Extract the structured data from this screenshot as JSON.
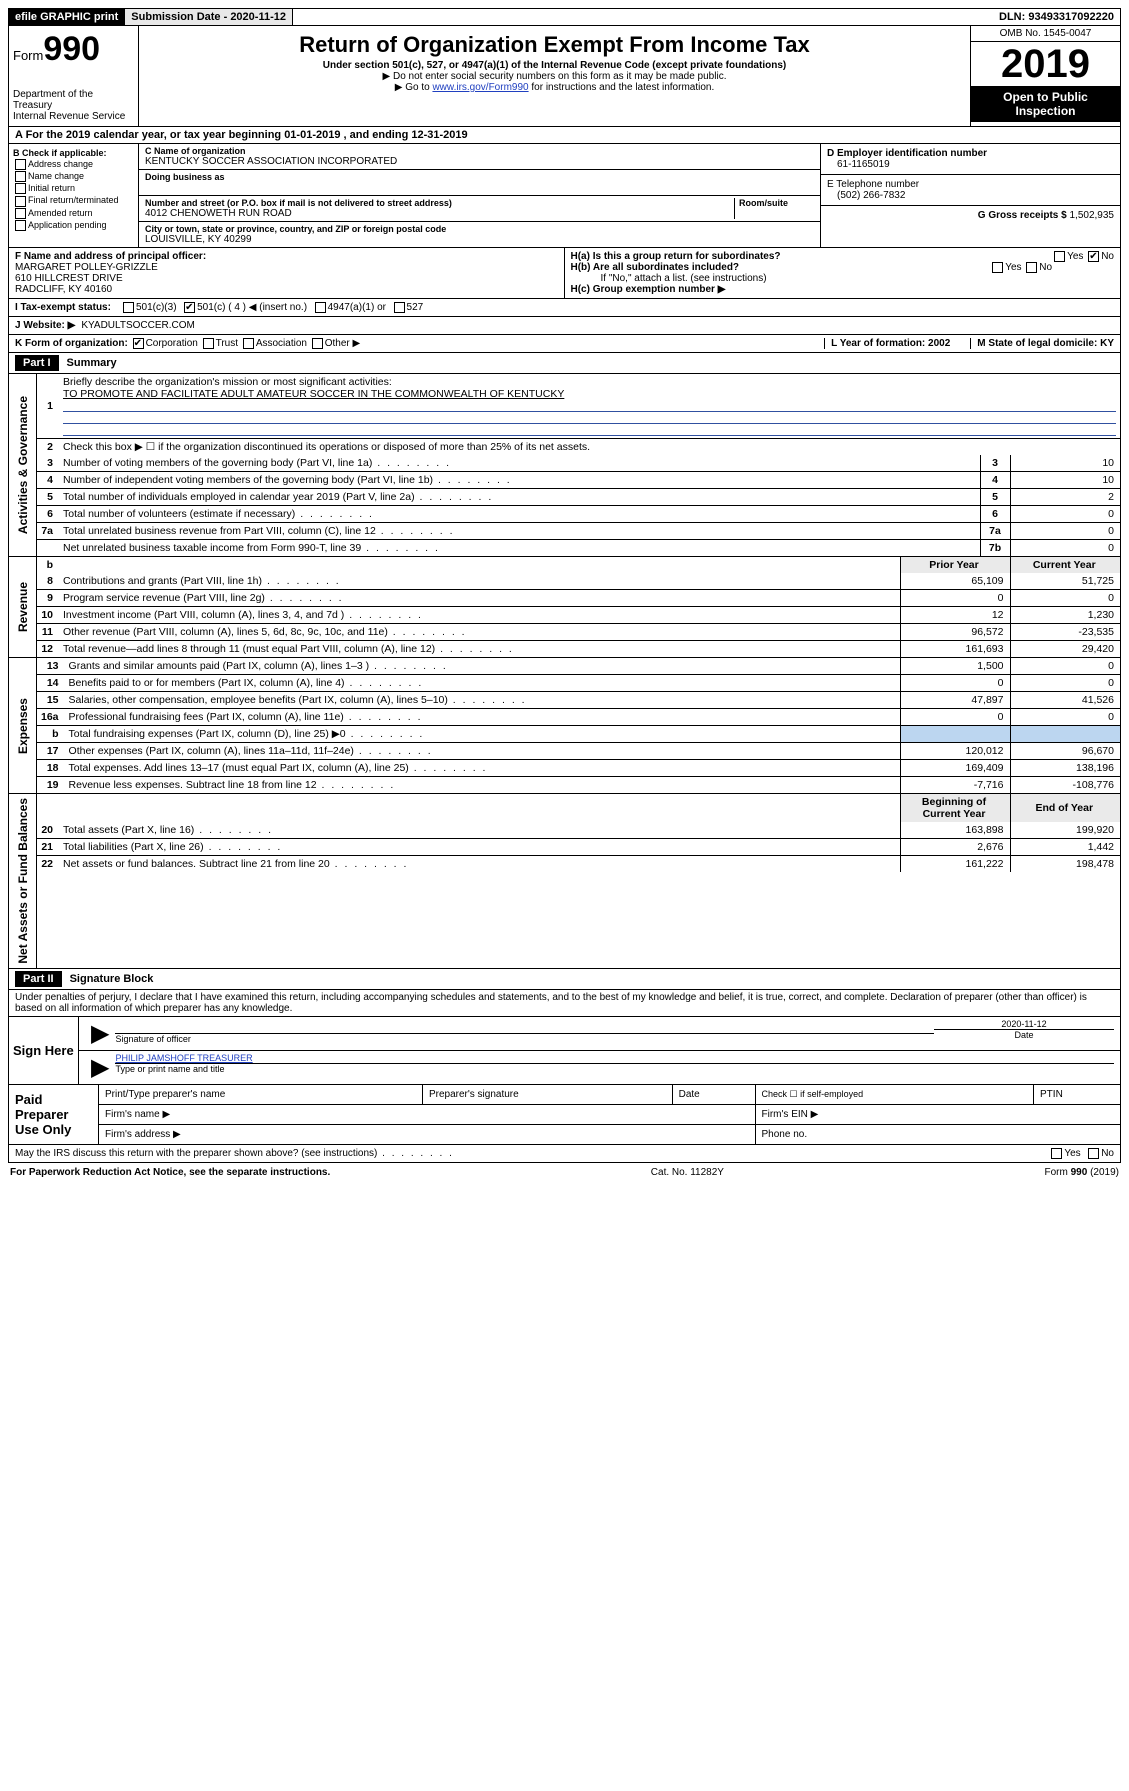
{
  "topbar": {
    "efile": "efile GRAPHIC print",
    "submission_label": "Submission Date - 2020-11-12",
    "dln": "DLN: 93493317092220"
  },
  "header": {
    "form_prefix": "Form",
    "form_number": "990",
    "dept": "Department of the Treasury\nInternal Revenue Service",
    "title": "Return of Organization Exempt From Income Tax",
    "subtitle": "Under section 501(c), 527, or 4947(a)(1) of the Internal Revenue Code (except private foundations)",
    "note1": "▶ Do not enter social security numbers on this form as it may be made public.",
    "note2_pre": "▶ Go to ",
    "note2_link": "www.irs.gov/Form990",
    "note2_post": " for instructions and the latest information.",
    "omb": "OMB No. 1545-0047",
    "year": "2019",
    "open": "Open to Public Inspection"
  },
  "row_a": "A For the 2019 calendar year, or tax year beginning 01-01-2019    , and ending 12-31-2019",
  "box_b": {
    "title": "B Check if applicable:",
    "items": [
      "Address change",
      "Name change",
      "Initial return",
      "Final return/terminated",
      "Amended return",
      "Application pending"
    ]
  },
  "box_c": {
    "name_label": "C Name of organization",
    "name": "KENTUCKY SOCCER ASSOCIATION INCORPORATED",
    "dba_label": "Doing business as",
    "street_label": "Number and street (or P.O. box if mail is not delivered to street address)",
    "room_label": "Room/suite",
    "street": "4012 CHENOWETH RUN ROAD",
    "city_label": "City or town, state or province, country, and ZIP or foreign postal code",
    "city": "LOUISVILLE, KY  40299"
  },
  "box_d": {
    "label": "D Employer identification number",
    "value": "61-1165019"
  },
  "box_e": {
    "label": "E Telephone number",
    "value": "(502) 266-7832"
  },
  "box_g": {
    "label": "G Gross receipts $",
    "value": "1,502,935"
  },
  "box_f": {
    "label": "F  Name and address of principal officer:",
    "value": "MARGARET POLLEY-GRIZZLE\n610 HILLCREST DRIVE\nRADCLIFF, KY  40160"
  },
  "box_h": {
    "ha": "H(a)  Is this a group return for subordinates?",
    "hb": "H(b)  Are all subordinates included?",
    "hb_note": "If \"No,\" attach a list. (see instructions)",
    "hc": "H(c)  Group exemption number ▶",
    "yes": "Yes",
    "no": "No"
  },
  "row_i": {
    "label": "I  Tax-exempt status:",
    "opts": [
      "501(c)(3)",
      "501(c) ( 4 ) ◀ (insert no.)",
      "4947(a)(1) or",
      "527"
    ]
  },
  "row_j": {
    "label": "J  Website: ▶",
    "value": "KYADULTSOCCER.COM"
  },
  "row_k": {
    "label": "K Form of organization:",
    "opts": [
      "Corporation",
      "Trust",
      "Association",
      "Other ▶"
    ],
    "l": "L Year of formation: 2002",
    "m": "M State of legal domicile: KY"
  },
  "part1": {
    "header": "Part I",
    "title": "Summary",
    "vlabel_gov": "Activities & Governance",
    "vlabel_rev": "Revenue",
    "vlabel_exp": "Expenses",
    "vlabel_net": "Net Assets or Fund Balances",
    "q1": "Briefly describe the organization's mission or most significant activities:",
    "q1a": "TO PROMOTE AND FACILITATE ADULT AMATEUR SOCCER IN THE COMMONWEALTH OF KENTUCKY",
    "q2": "Check this box ▶ ☐  if the organization discontinued its operations or disposed of more than 25% of its net assets.",
    "lines_top": [
      {
        "n": "3",
        "t": "Number of voting members of the governing body (Part VI, line 1a)",
        "b": "3",
        "v": "10"
      },
      {
        "n": "4",
        "t": "Number of independent voting members of the governing body (Part VI, line 1b)",
        "b": "4",
        "v": "10"
      },
      {
        "n": "5",
        "t": "Total number of individuals employed in calendar year 2019 (Part V, line 2a)",
        "b": "5",
        "v": "2"
      },
      {
        "n": "6",
        "t": "Total number of volunteers (estimate if necessary)",
        "b": "6",
        "v": "0"
      },
      {
        "n": "7a",
        "t": "Total unrelated business revenue from Part VIII, column (C), line 12",
        "b": "7a",
        "v": "0"
      },
      {
        "n": "",
        "t": "Net unrelated business taxable income from Form 990-T, line 39",
        "b": "7b",
        "v": "0"
      }
    ],
    "col_hdr": {
      "b": "b",
      "py": "Prior Year",
      "cy": "Current Year"
    },
    "rev_lines": [
      {
        "n": "8",
        "t": "Contributions and grants (Part VIII, line 1h)",
        "py": "65,109",
        "cy": "51,725"
      },
      {
        "n": "9",
        "t": "Program service revenue (Part VIII, line 2g)",
        "py": "0",
        "cy": "0"
      },
      {
        "n": "10",
        "t": "Investment income (Part VIII, column (A), lines 3, 4, and 7d )",
        "py": "12",
        "cy": "1,230"
      },
      {
        "n": "11",
        "t": "Other revenue (Part VIII, column (A), lines 5, 6d, 8c, 9c, 10c, and 11e)",
        "py": "96,572",
        "cy": "-23,535"
      },
      {
        "n": "12",
        "t": "Total revenue—add lines 8 through 11 (must equal Part VIII, column (A), line 12)",
        "py": "161,693",
        "cy": "29,420"
      }
    ],
    "exp_lines": [
      {
        "n": "13",
        "t": "Grants and similar amounts paid (Part IX, column (A), lines 1–3 )",
        "py": "1,500",
        "cy": "0"
      },
      {
        "n": "14",
        "t": "Benefits paid to or for members (Part IX, column (A), line 4)",
        "py": "0",
        "cy": "0"
      },
      {
        "n": "15",
        "t": "Salaries, other compensation, employee benefits (Part IX, column (A), lines 5–10)",
        "py": "47,897",
        "cy": "41,526"
      },
      {
        "n": "16a",
        "t": "Professional fundraising fees (Part IX, column (A), line 11e)",
        "py": "0",
        "cy": "0"
      },
      {
        "n": "b",
        "t": "Total fundraising expenses (Part IX, column (D), line 25) ▶0",
        "py": "",
        "cy": "",
        "shade": true
      },
      {
        "n": "17",
        "t": "Other expenses (Part IX, column (A), lines 11a–11d, 11f–24e)",
        "py": "120,012",
        "cy": "96,670"
      },
      {
        "n": "18",
        "t": "Total expenses. Add lines 13–17 (must equal Part IX, column (A), line 25)",
        "py": "169,409",
        "cy": "138,196"
      },
      {
        "n": "19",
        "t": "Revenue less expenses. Subtract line 18 from line 12",
        "py": "-7,716",
        "cy": "-108,776"
      }
    ],
    "net_hdr": {
      "py": "Beginning of Current Year",
      "cy": "End of Year"
    },
    "net_lines": [
      {
        "n": "20",
        "t": "Total assets (Part X, line 16)",
        "py": "163,898",
        "cy": "199,920"
      },
      {
        "n": "21",
        "t": "Total liabilities (Part X, line 26)",
        "py": "2,676",
        "cy": "1,442"
      },
      {
        "n": "22",
        "t": "Net assets or fund balances. Subtract line 21 from line 20",
        "py": "161,222",
        "cy": "198,478"
      }
    ]
  },
  "part2": {
    "header": "Part II",
    "title": "Signature Block",
    "decl": "Under penalties of perjury, I declare that I have examined this return, including accompanying schedules and statements, and to the best of my knowledge and belief, it is true, correct, and complete. Declaration of preparer (other than officer) is based on all information of which preparer has any knowledge.",
    "sign_here": "Sign Here",
    "sig_officer": "Signature of officer",
    "date_label": "Date",
    "date_val": "2020-11-12",
    "name_title": "PHILIP JAMSHOFF TREASURER",
    "name_title_label": "Type or print name and title"
  },
  "prep": {
    "label": "Paid Preparer Use Only",
    "cols": [
      "Print/Type preparer's name",
      "Preparer's signature",
      "Date",
      "",
      "PTIN"
    ],
    "check": "Check ☐ if self-employed",
    "firm_name": "Firm's name   ▶",
    "firm_ein": "Firm's EIN ▶",
    "firm_addr": "Firm's address ▶",
    "phone": "Phone no."
  },
  "bottom": {
    "q": "May the IRS discuss this return with the preparer shown above? (see instructions)",
    "yes": "Yes",
    "no": "No",
    "pra": "For Paperwork Reduction Act Notice, see the separate instructions.",
    "cat": "Cat. No. 11282Y",
    "form": "Form 990 (2019)"
  }
}
